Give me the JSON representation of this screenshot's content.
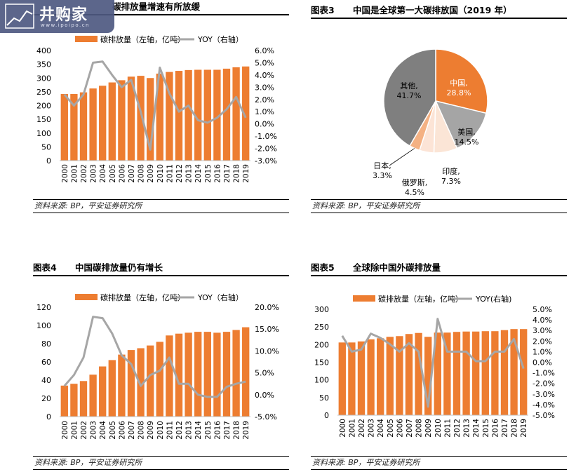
{
  "panels": [
    {
      "id": "fig2",
      "title_num": "",
      "title_text": "碳排放量增速有所放缓",
      "source": "资料来源: BP，平安证券研究所"
    },
    {
      "id": "fig3",
      "title_num": "图表3",
      "title_text": "中国是全球第一大碳排放国（2019 年）",
      "source": "资料来源: BP，平安证券研究所"
    },
    {
      "id": "fig4",
      "title_num": "图表4",
      "title_text": "中国碳排放量仍有增长",
      "source": "资料来源: BP，平安证券研究所"
    },
    {
      "id": "fig5",
      "title_num": "图表5",
      "title_text": "全球除中国外碳排放量",
      "source": "资料来源: BP，平安证券研究所"
    }
  ],
  "logo": {
    "text": "井购家",
    "url": "www.ipoipo.cn"
  },
  "colors": {
    "bar": "#ED7D31",
    "line": "#A6A6A6",
    "pie_gray": "#7F7F7F"
  },
  "chart_data": [
    {
      "type": "bar",
      "panel": "fig2",
      "categories": [
        "2000",
        "2001",
        "2002",
        "2003",
        "2004",
        "2005",
        "2006",
        "2007",
        "2008",
        "2009",
        "2010",
        "2011",
        "2012",
        "2013",
        "2014",
        "2015",
        "2016",
        "2017",
        "2018",
        "2019"
      ],
      "series": [
        {
          "name": "碳排放量（左轴，亿吨）",
          "axis": "left",
          "type": "bar",
          "values": [
            242,
            242,
            248,
            262,
            272,
            284,
            292,
            305,
            308,
            300,
            316,
            322,
            326,
            329,
            330,
            330,
            330,
            334,
            339,
            342
          ]
        },
        {
          "name": "YOY（右轴）",
          "axis": "right",
          "type": "line",
          "values": [
            2.4,
            1.5,
            2.4,
            5.0,
            5.1,
            4.0,
            3.0,
            3.6,
            1.0,
            -2.1,
            4.6,
            2.5,
            1.0,
            1.5,
            0.3,
            0.1,
            0.5,
            1.2,
            2.2,
            0.5
          ]
        }
      ],
      "ylim_left": [
        0,
        400
      ],
      "yticks_left": [
        "0",
        "50",
        "100",
        "150",
        "200",
        "250",
        "300",
        "350",
        "400"
      ],
      "ylim_right": [
        -3,
        6
      ],
      "yticks_right": [
        "-3.0%",
        "-2.0%",
        "-1.0%",
        "0.0%",
        "1.0%",
        "2.0%",
        "3.0%",
        "4.0%",
        "5.0%",
        "6.0%"
      ],
      "legend": "top"
    },
    {
      "type": "pie",
      "panel": "fig3",
      "slices": [
        {
          "name": "中国,",
          "pct_label": "28.8%",
          "value": 28.8,
          "color": "#ED7D31"
        },
        {
          "name": "美国,",
          "pct_label": "14.5%",
          "value": 14.5,
          "color": "#A5A5A5"
        },
        {
          "name": "印度,",
          "pct_label": "7.3%",
          "value": 7.3,
          "color": "#FBE5D6"
        },
        {
          "name": "俄罗斯,",
          "pct_label": "4.5%",
          "value": 4.5,
          "color": "#FCE4D6"
        },
        {
          "name": "日本,",
          "pct_label": "3.3%",
          "value": 3.3,
          "color": "#F4B183"
        },
        {
          "name": "其他,",
          "pct_label": "41.7%",
          "value": 41.7,
          "color": "#7F7F7F"
        }
      ]
    },
    {
      "type": "bar",
      "panel": "fig4",
      "categories": [
        "2000",
        "2001",
        "2002",
        "2003",
        "2004",
        "2005",
        "2006",
        "2007",
        "2008",
        "2009",
        "2010",
        "2011",
        "2012",
        "2013",
        "2014",
        "2015",
        "2016",
        "2017",
        "2018",
        "2019"
      ],
      "series": [
        {
          "name": "碳排放量（左轴，亿吨）",
          "axis": "left",
          "type": "bar",
          "values": [
            34,
            36,
            39,
            46,
            55,
            62,
            68,
            73,
            75,
            78,
            82,
            89,
            91,
            92,
            93,
            93,
            92,
            93,
            95,
            98
          ]
        },
        {
          "name": "YOY（右轴）",
          "axis": "right",
          "type": "line",
          "values": [
            2.0,
            4.5,
            8.5,
            17.8,
            17.5,
            14.0,
            9.0,
            7.0,
            2.0,
            4.5,
            5.5,
            8.5,
            2.5,
            2.5,
            0.0,
            -0.5,
            -0.5,
            1.8,
            2.5,
            3.0
          ]
        }
      ],
      "ylim_left": [
        0,
        120
      ],
      "yticks_left": [
        "0",
        "20",
        "40",
        "60",
        "80",
        "100",
        "120"
      ],
      "ylim_right": [
        -5,
        20
      ],
      "yticks_right": [
        "-5.0%",
        "0.0%",
        "5.0%",
        "10.0%",
        "15.0%",
        "20.0%"
      ],
      "legend": "top"
    },
    {
      "type": "bar",
      "panel": "fig5",
      "categories": [
        "2000",
        "2001",
        "2002",
        "2003",
        "2004",
        "2005",
        "2006",
        "2007",
        "2008",
        "2009",
        "2010",
        "2011",
        "2012",
        "2013",
        "2014",
        "2015",
        "2016",
        "2017",
        "2018",
        "2019"
      ],
      "series": [
        {
          "name": "碳排放量（左轴，亿吨）",
          "axis": "left",
          "type": "bar",
          "values": [
            206,
            206,
            209,
            215,
            218,
            222,
            224,
            230,
            233,
            222,
            234,
            234,
            236,
            237,
            237,
            238,
            238,
            241,
            244,
            244
          ]
        },
        {
          "name": "YOY(右轴)",
          "axis": "right",
          "type": "line",
          "values": [
            2.5,
            1.0,
            1.2,
            2.7,
            2.3,
            1.7,
            1.0,
            1.8,
            1.0,
            -4.2,
            4.1,
            1.0,
            1.0,
            1.0,
            0.1,
            0.1,
            1.0,
            1.0,
            2.2,
            -0.6
          ]
        }
      ],
      "ylim_left": [
        0,
        300
      ],
      "yticks_left": [
        "0",
        "50",
        "100",
        "150",
        "200",
        "250",
        "300"
      ],
      "ylim_right": [
        -5,
        5
      ],
      "yticks_right": [
        "-5.0%",
        "-4.0%",
        "-3.0%",
        "-2.0%",
        "-1.0%",
        "0.0%",
        "1.0%",
        "2.0%",
        "3.0%",
        "4.0%",
        "5.0%"
      ],
      "legend": "top"
    }
  ]
}
